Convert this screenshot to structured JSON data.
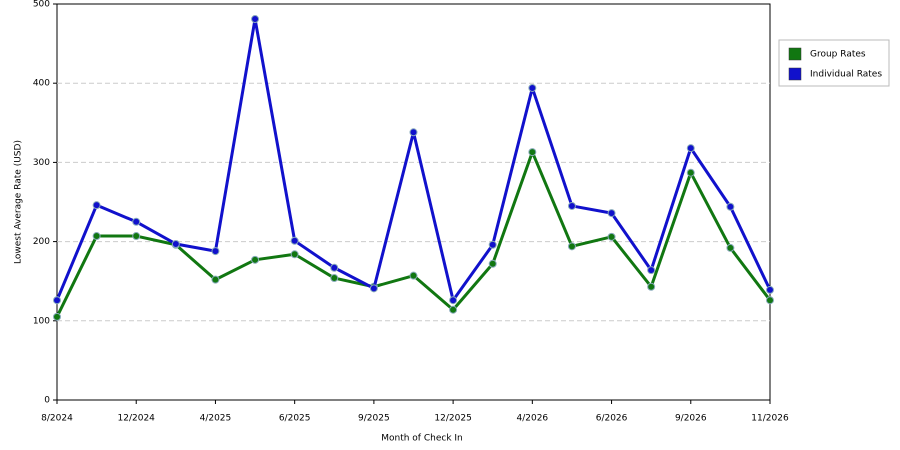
{
  "chart_data": {
    "type": "line",
    "x_label": "Month of Check In",
    "y_label": "Lowest Average Rate (USD)",
    "categories": [
      "8/2024",
      null,
      "12/2024",
      null,
      "4/2025",
      null,
      "6/2025",
      null,
      "9/2025",
      null,
      "12/2025",
      null,
      "4/2026",
      null,
      "6/2026",
      null,
      "9/2026",
      null,
      "11/2026"
    ],
    "series": [
      {
        "name": "Group Rates",
        "color": "#117711",
        "values": [
          105,
          207,
          207,
          196,
          152,
          177,
          184,
          154,
          143,
          157,
          114,
          172,
          313,
          194,
          206,
          143,
          287,
          192,
          126
        ]
      },
      {
        "name": "Individual Rates",
        "color": "#1111cc",
        "values": [
          126,
          246,
          225,
          197,
          188,
          481,
          201,
          167,
          141,
          338,
          126,
          196,
          394,
          245,
          236,
          164,
          318,
          244,
          139
        ]
      }
    ],
    "ylim": [
      0,
      500
    ],
    "yticks": [
      0,
      100,
      200,
      300,
      400,
      500
    ],
    "grid": true,
    "legend": "right"
  }
}
